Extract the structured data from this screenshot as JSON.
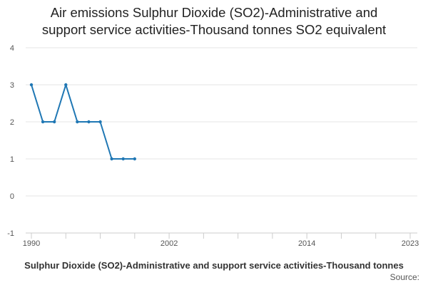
{
  "chart_data": {
    "type": "line",
    "title": "Air emissions Sulphur Dioxide (SO2)-Administrative and support service activities-Thousand tonnes SO2 equivalent",
    "title_lines": [
      "Air emissions Sulphur Dioxide (SO2)-Administrative and",
      "support service activities-Thousand tonnes SO2 equivalent"
    ],
    "xlabel": "",
    "ylabel": "",
    "x_ticks": [
      1990,
      2002,
      2014,
      2023
    ],
    "y_ticks": [
      -1,
      0,
      1,
      2,
      3,
      4
    ],
    "xlim": [
      1990,
      2023
    ],
    "ylim": [
      -1,
      4
    ],
    "grid": true,
    "series": [
      {
        "name": "Air emissions Sulphur Dioxide (SO2)-Administrative and support service activities-Thousand tonnes SO2 equivalent",
        "color": "#1f77b4",
        "x": [
          1990,
          1991,
          1992,
          1993,
          1994,
          1995,
          1996,
          1997,
          1998,
          1999
        ],
        "values": [
          3,
          2,
          2,
          3,
          2,
          2,
          2,
          1,
          1,
          1
        ]
      }
    ],
    "legend_text": "Sulphur Dioxide (SO2)-Administrative and support service activities-Thousand tonnes",
    "source_label": "Source:"
  },
  "colors": {
    "line": "#1f77b4",
    "grid": "#e6e6e6",
    "axis": "#cccccc",
    "text": "#222222"
  }
}
